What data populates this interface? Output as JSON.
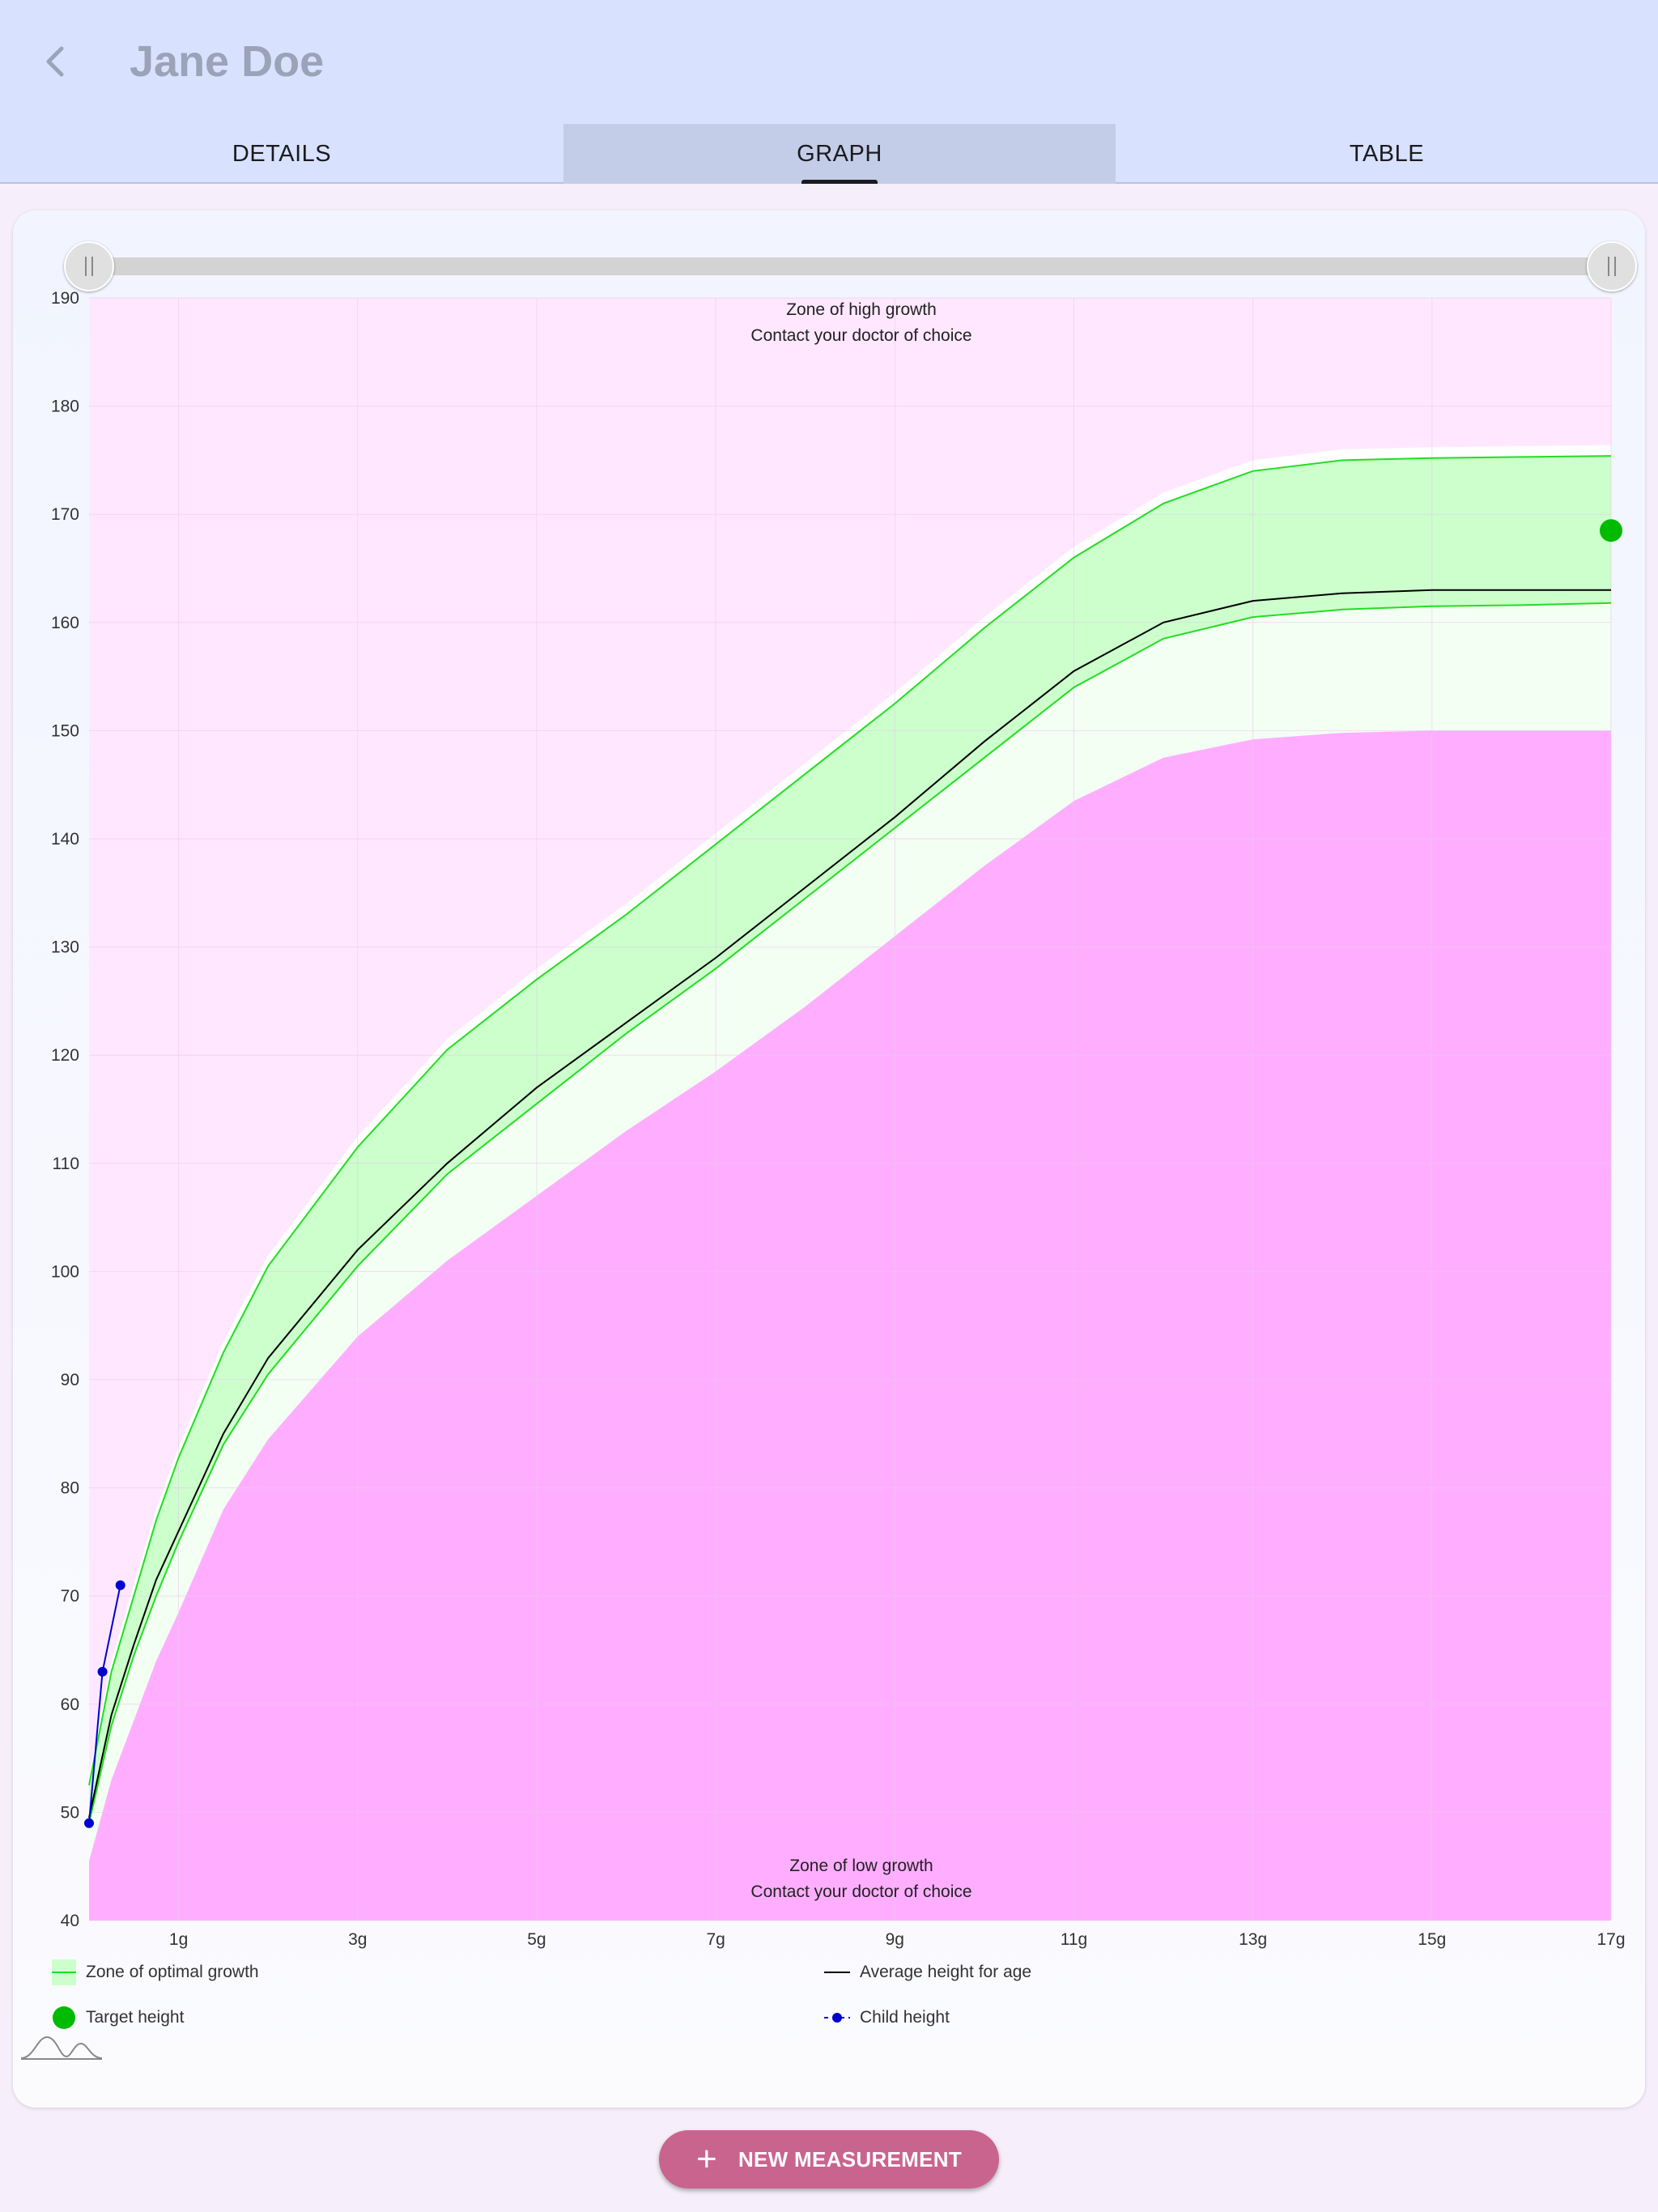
{
  "header": {
    "title": "Jane Doe",
    "back_icon": "chevron-left-icon"
  },
  "tabs": [
    {
      "label": "DETAILS",
      "active": false
    },
    {
      "label": "GRAPH",
      "active": true
    },
    {
      "label": "TABLE",
      "active": false
    }
  ],
  "range_slider": {
    "start_age_years": 0,
    "end_age_years": 17
  },
  "chart_data": {
    "type": "area",
    "xlabel": "",
    "ylabel": "",
    "x_unit": "years",
    "xlim": [
      0,
      17
    ],
    "ylim": [
      40,
      190
    ],
    "y_ticks": [
      40,
      50,
      60,
      70,
      80,
      90,
      100,
      110,
      120,
      130,
      140,
      150,
      160,
      170,
      180,
      190
    ],
    "x_tick_values": [
      1,
      3,
      5,
      7,
      9,
      11,
      13,
      15,
      17
    ],
    "x_tick_labels": [
      "1g",
      "3g",
      "5g",
      "7g",
      "9g",
      "11g",
      "13g",
      "15g",
      "17g"
    ],
    "grid": true,
    "annotations": {
      "high_zone_title": "Zone of high growth",
      "high_zone_note": "Contact your doctor of choice",
      "low_zone_title": "Zone of low growth",
      "low_zone_note": "Contact your doctor of choice"
    },
    "x": [
      0,
      0.25,
      0.5,
      0.75,
      1,
      1.5,
      2,
      3,
      4,
      5,
      6,
      7,
      8,
      9,
      10,
      11,
      12,
      13,
      14,
      15,
      16,
      17
    ],
    "series": [
      {
        "name": "Zone of optimal growth",
        "role": "upper",
        "values": [
          52.5,
          63,
          70,
          77,
          82.8,
          92.5,
          100.5,
          111.5,
          120.5,
          127,
          133,
          139.5,
          146,
          152.5,
          159.5,
          166,
          171,
          174,
          175,
          175.2,
          175.3,
          175.4
        ]
      },
      {
        "name": "Zone of optimal growth",
        "role": "lower",
        "values": [
          49,
          58,
          64.5,
          70,
          75,
          84,
          90.5,
          100.5,
          109,
          115.5,
          122,
          128,
          134.5,
          141,
          147.5,
          154,
          158.5,
          160.5,
          161.2,
          161.5,
          161.6,
          161.8
        ]
      },
      {
        "name": "Average height for age",
        "values": [
          49.5,
          59,
          65.5,
          71.5,
          76,
          85,
          92,
          102,
          110,
          117,
          123,
          129,
          135.5,
          142,
          149,
          155.5,
          160,
          162,
          162.7,
          163,
          163,
          163
        ]
      },
      {
        "name": "low-growth-boundary",
        "values": [
          45.5,
          53,
          58.5,
          64,
          68.5,
          78,
          84.5,
          94,
          101,
          107,
          113,
          118.5,
          124.5,
          131,
          137.5,
          143.5,
          147.5,
          149.2,
          149.8,
          150,
          150,
          150
        ]
      },
      {
        "name": "high-growth-boundary",
        "values": [
          53.5,
          64,
          71,
          78,
          83.8,
          93.5,
          101.5,
          112.5,
          121.5,
          128,
          134,
          140.5,
          147,
          153.5,
          160.5,
          167,
          172,
          175,
          176,
          176.2,
          176.3,
          176.4
        ]
      }
    ],
    "child_height": {
      "name": "Child height",
      "x": [
        0,
        0.15,
        0.35
      ],
      "y": [
        49,
        63,
        71
      ]
    },
    "target_height": {
      "name": "Target height",
      "x": 17,
      "y": 168.5
    },
    "legend": [
      {
        "label": "Zone of optimal growth",
        "marker": "band"
      },
      {
        "label": "Average height for age",
        "marker": "line"
      },
      {
        "label": "Target height",
        "marker": "dot"
      },
      {
        "label": "Child height",
        "marker": "dashed-dot"
      }
    ],
    "legend_position": "bottom",
    "colors": {
      "high_zone": "#ffe8ff",
      "low_zone": "#ffaeff",
      "optimal_fill": "#ccffcc",
      "optimal_line": "#22dd22",
      "average_line": "#000000",
      "band_below": "#f4fff4",
      "child_line": "#0000cc",
      "target_dot": "#00bb00",
      "grid": "#e7c9ea"
    }
  },
  "fab": {
    "label": "NEW MEASUREMENT",
    "icon": "plus-icon"
  }
}
